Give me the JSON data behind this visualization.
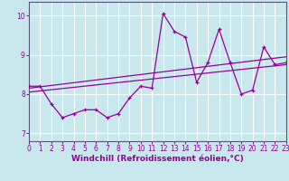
{
  "xlabel": "Windchill (Refroidissement éolien,°C)",
  "x_data": [
    0,
    1,
    2,
    3,
    4,
    5,
    6,
    7,
    8,
    9,
    10,
    11,
    12,
    13,
    14,
    15,
    16,
    17,
    18,
    19,
    20,
    21,
    22,
    23
  ],
  "y_data": [
    8.2,
    8.2,
    7.75,
    7.4,
    7.5,
    7.6,
    7.6,
    7.4,
    7.5,
    7.9,
    8.2,
    8.15,
    10.05,
    9.6,
    9.45,
    8.3,
    8.8,
    9.65,
    8.8,
    8.0,
    8.1,
    9.2,
    8.75,
    8.8
  ],
  "trend1_x": [
    0,
    23
  ],
  "trend1_y": [
    8.05,
    8.75
  ],
  "trend2_x": [
    0,
    23
  ],
  "trend2_y": [
    8.15,
    8.95
  ],
  "line_color": "#990099",
  "bg_color": "#c8e8ed",
  "grid_color": "#ffffff",
  "xlim": [
    0,
    23
  ],
  "ylim": [
    6.8,
    10.35
  ],
  "yticks": [
    7,
    8,
    9,
    10
  ],
  "xticks": [
    0,
    1,
    2,
    3,
    4,
    5,
    6,
    7,
    8,
    9,
    10,
    11,
    12,
    13,
    14,
    15,
    16,
    17,
    18,
    19,
    20,
    21,
    22,
    23
  ],
  "tick_fontsize": 5.5,
  "xlabel_fontsize": 6.5,
  "marker_size": 3.5
}
